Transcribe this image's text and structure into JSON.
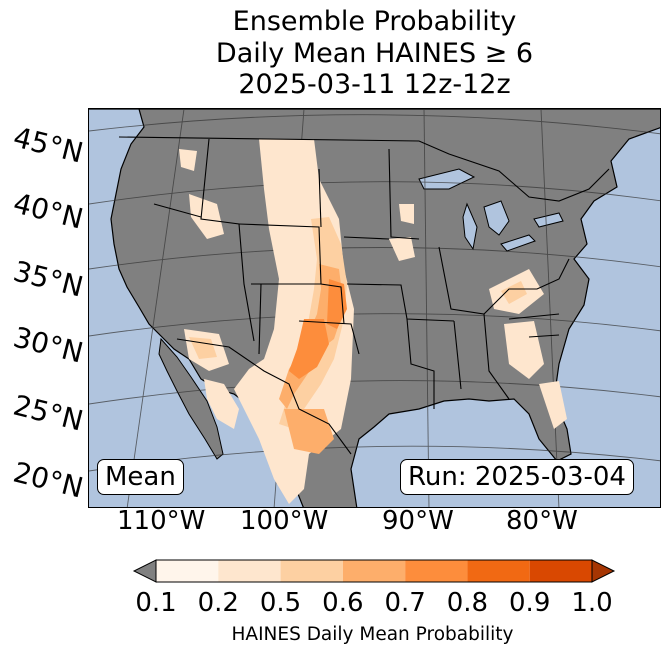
{
  "title": {
    "line1": "Ensemble Probability",
    "line2": "Daily Mean HAINES ≥ 6",
    "line3": "2025-03-11 12z-12z"
  },
  "map": {
    "ocean_color": "#b0c4de",
    "land_color": "#808080",
    "lake_color": "#b0c4de",
    "lat_labels": [
      "45°N",
      "40°N",
      "35°N",
      "30°N",
      "25°N",
      "20°N"
    ],
    "lon_labels": [
      "110°W",
      "100°W",
      "90°W",
      "80°W"
    ],
    "mean_label": "Mean",
    "run_label": "Run: 2025-03-04"
  },
  "colorbar": {
    "tick_labels": [
      "0.1",
      "0.2",
      "0.5",
      "0.6",
      "0.7",
      "0.8",
      "0.9",
      "1.0"
    ],
    "colors": [
      "#fff5eb",
      "#fee6ce",
      "#fdd0a2",
      "#fdae6b",
      "#fd8d3c",
      "#f16913",
      "#d94801",
      "#a63603"
    ],
    "under_color": "#808080",
    "label": "HAINES Daily Mean Probability"
  }
}
